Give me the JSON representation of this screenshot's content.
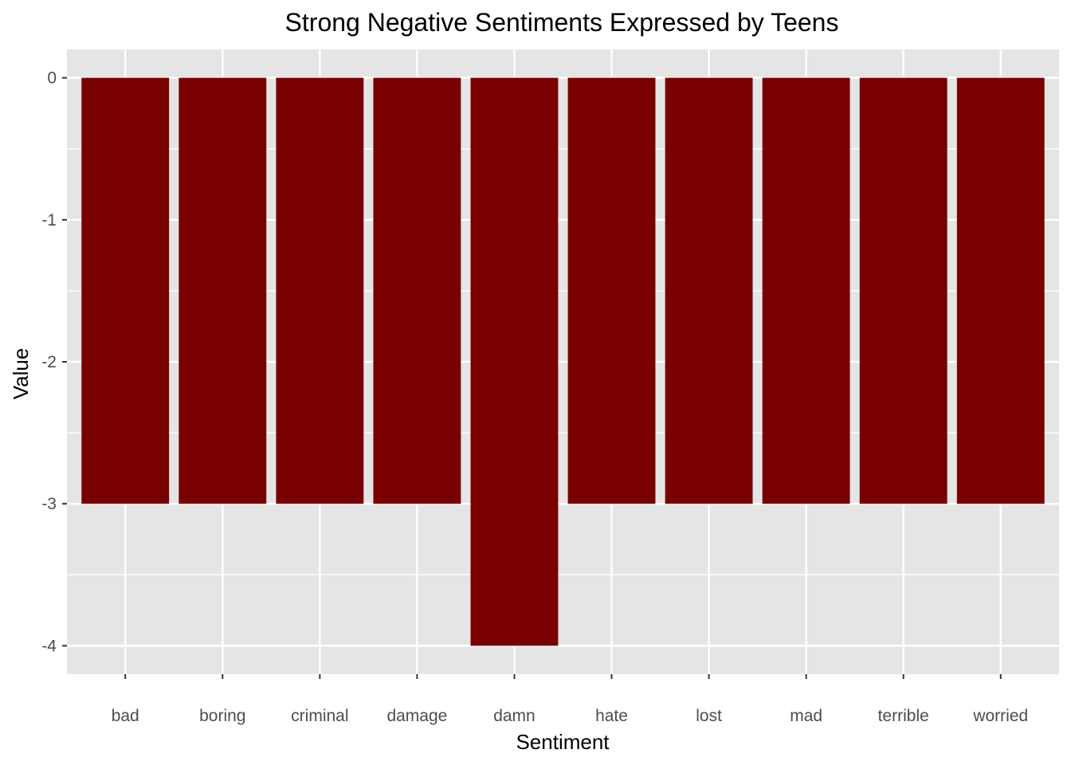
{
  "chart_data": {
    "type": "bar",
    "title": "Strong Negative Sentiments Expressed by Teens",
    "xlabel": "Sentiment",
    "ylabel": "Value",
    "categories": [
      "bad",
      "boring",
      "criminal",
      "damage",
      "damn",
      "hate",
      "lost",
      "mad",
      "terrible",
      "worried"
    ],
    "values": [
      -3,
      -3,
      -3,
      -3,
      -4,
      -3,
      -3,
      -3,
      -3,
      -3
    ],
    "yticks": [
      0,
      -1,
      -2,
      -3,
      -4
    ],
    "ytick_labels": [
      "0",
      "-1",
      "-2",
      "-3",
      "-4"
    ],
    "ylim": [
      -4.2,
      0.2
    ],
    "grid": true,
    "colors": {
      "bar": "#780000",
      "panel": "#e5e5e5",
      "grid": "#ffffff",
      "tick_text": "#4d4d4d",
      "tick_mark": "#333333"
    }
  }
}
